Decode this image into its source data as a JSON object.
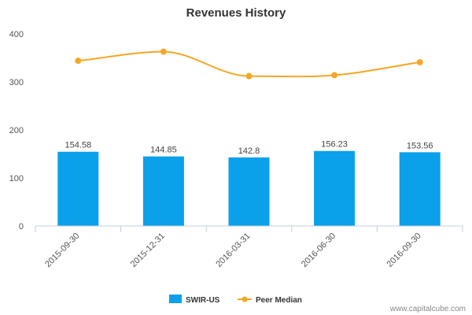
{
  "chart_data": {
    "type": "bar",
    "title": "Revenues History",
    "xlabel": "",
    "ylabel": "",
    "ylim": [
      0,
      400
    ],
    "yticks": [
      0,
      100,
      200,
      300,
      400
    ],
    "categories": [
      "2015-09-30",
      "2015-12-31",
      "2016-03-31",
      "2016-06-30",
      "2016-09-30"
    ],
    "series": [
      {
        "name": "SWIR-US",
        "type": "bar",
        "color": "#0aa0ea",
        "values": [
          154.58,
          144.85,
          142.8,
          156.23,
          153.56
        ],
        "labels": [
          "154.58",
          "144.85",
          "142.8",
          "156.23",
          "153.56"
        ]
      },
      {
        "name": "Peer Median",
        "type": "line",
        "color": "#f5a623",
        "values": [
          344,
          363,
          312,
          314,
          341
        ]
      }
    ],
    "grid": false,
    "legend": "bottom-center"
  },
  "credit": "www.capitalcube.com"
}
